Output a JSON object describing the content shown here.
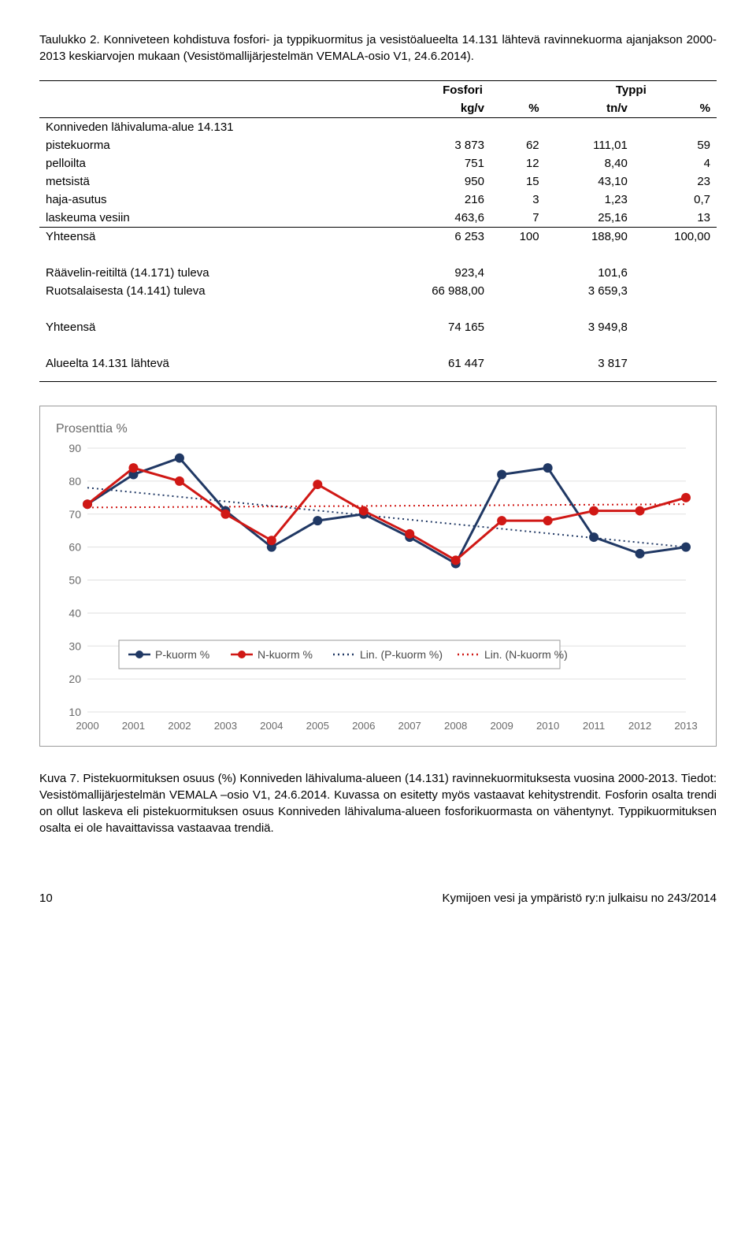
{
  "header_caption": {
    "prefix": "Taulukko 2. Konniveteen kohdistuva fosfori- ja typpikuormitus ja vesistöalueelta 14.131 lähtevä ravinnekuorma ajanjakson 2000-2013 keskiarvojen mukaan (Vesistömallijärjestelmän VEMALA-osio V1, 24.6.2014)."
  },
  "table": {
    "h_fosfori": "Fosfori",
    "h_typpi": "Typpi",
    "h_kgv": "kg/v",
    "h_pct1": "%",
    "h_tnv": "tn/v",
    "h_pct2": "%",
    "r_area": "Konniveden lähivaluma-alue 14.131",
    "r_piste": "pistekuorma",
    "v_piste": [
      "3 873",
      "62",
      "111,01",
      "59"
    ],
    "r_pell": "pelloilta",
    "v_pell": [
      "751",
      "12",
      "8,40",
      "4"
    ],
    "r_mets": "metsistä",
    "v_mets": [
      "950",
      "15",
      "43,10",
      "23"
    ],
    "r_haja": "haja-asutus",
    "v_haja": [
      "216",
      "3",
      "1,23",
      "0,7"
    ],
    "r_lask": "laskeuma vesiin",
    "v_lask": [
      "463,6",
      "7",
      "25,16",
      "13"
    ],
    "r_yht": "Yhteensä",
    "v_yht": [
      "6 253",
      "100",
      "188,90",
      "100,00"
    ],
    "r_raa": "Räävelin-reitiltä (14.171) tuleva",
    "v_raa": [
      "923,4",
      "",
      "101,6",
      ""
    ],
    "r_ruo": "Ruotsalaisesta (14.141) tuleva",
    "v_ruo": [
      "66 988,00",
      "",
      "3 659,3",
      ""
    ],
    "r_yht2": "Yhteensä",
    "v_yht2": [
      "74 165",
      "",
      "3 949,8",
      ""
    ],
    "r_alue": "Alueelta 14.131 lähtevä",
    "v_alue": [
      "61 447",
      "",
      "3 817",
      ""
    ]
  },
  "chart": {
    "title": "Prosenttia %",
    "colors": {
      "p": "#203864",
      "n": "#d01815",
      "grid": "#e0e0e0",
      "axis": "#808080",
      "bg": "#ffffff"
    },
    "ylim": [
      10,
      90
    ],
    "ytick_step": 10,
    "yticks": [
      "10",
      "20",
      "30",
      "40",
      "50",
      "60",
      "70",
      "80",
      "90"
    ],
    "xlabels": [
      "2000",
      "2001",
      "2002",
      "2003",
      "2004",
      "2005",
      "2006",
      "2007",
      "2008",
      "2009",
      "2010",
      "2011",
      "2012",
      "2013"
    ],
    "p_series": [
      73,
      82,
      87,
      71,
      60,
      68,
      70,
      63,
      55,
      82,
      84,
      63,
      58,
      60
    ],
    "n_series": [
      73,
      84,
      80,
      70,
      62,
      79,
      71,
      64,
      56,
      68,
      68,
      71,
      71,
      75
    ],
    "p_trend": [
      78,
      60
    ],
    "n_trend": [
      72,
      73
    ],
    "legend": {
      "p": "P-kuorm %",
      "n": "N-kuorm %",
      "pt": "Lin. (P-kuorm %)",
      "nt": "Lin. (N-kuorm %)"
    },
    "line_width": 3,
    "marker_size": 6
  },
  "fig_caption": "Kuva 7. Pistekuormituksen osuus (%) Konniveden lähivaluma-alueen (14.131) ravinnekuormituksesta vuosina 2000-2013. Tiedot: Vesistömallijärjestelmän VEMALA –osio V1, 24.6.2014. Kuvassa on esitetty myös vastaavat kehitystrendit. Fosforin osalta trendi on ollut laskeva eli pistekuormituksen osuus Konniveden lähivaluma-alueen fosforikuormasta on vähentynyt. Typpikuormituksen osalta ei ole havaittavissa vastaavaa trendiä.",
  "footer": {
    "page": "10",
    "right": "Kymijoen vesi ja ympäristö ry:n julkaisu no 243/2014"
  }
}
